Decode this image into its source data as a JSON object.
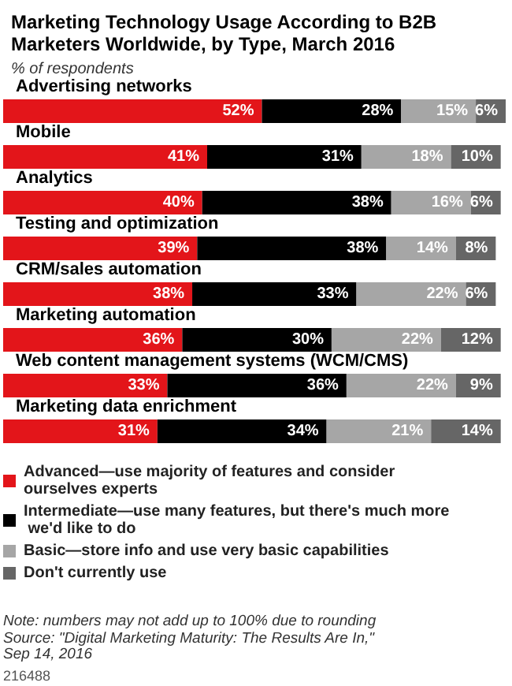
{
  "chart_data": {
    "type": "bar",
    "orientation": "horizontal",
    "stacked": true,
    "title": "Marketing Technology Usage According to B2B Marketers Worldwide, by Type, March 2016",
    "subtitle": "% of respondents",
    "categories": [
      "Advertising networks",
      "Mobile",
      "Analytics",
      "Testing and optimization",
      "CRM/sales automation",
      "Marketing automation",
      "Web content management systems (WCM/CMS)",
      "Marketing data enrichment"
    ],
    "series": [
      {
        "name": "Advanced—use majority of features and consider ourselves experts",
        "color": "#e3151a",
        "values": [
          52,
          41,
          40,
          39,
          38,
          36,
          33,
          31
        ],
        "value_labels": [
          "52%",
          "41%",
          "40%",
          "39%",
          "38%",
          "36%",
          "33%",
          "31%"
        ]
      },
      {
        "name": "Intermediate—use many features, but there's much more we'd like to do",
        "color": "#000000",
        "values": [
          28,
          31,
          38,
          38,
          33,
          30,
          36,
          34
        ],
        "value_labels": [
          "28%",
          "31%",
          "38%",
          "38%",
          "33%",
          "30%",
          "36%",
          "34%"
        ]
      },
      {
        "name": "Basic—store info and use very basic capabilities",
        "color": "#a6a6a6",
        "values": [
          15,
          18,
          16,
          14,
          22,
          22,
          22,
          21
        ],
        "value_labels": [
          "15%",
          "18%",
          "16%",
          "14%",
          "22%",
          "22%",
          "22%",
          "21%"
        ]
      },
      {
        "name": "Don't currently use",
        "color": "#666666",
        "values": [
          6,
          10,
          6,
          8,
          6,
          12,
          9,
          14
        ],
        "value_labels": [
          "6%",
          "10%",
          "6%",
          "8%",
          "6%",
          "12%",
          "9%",
          "14%"
        ]
      }
    ],
    "legend": "bottom",
    "tick_labels": "y",
    "annotations": [
      "Note: numbers may not add up to 100% due to rounding",
      "Source: \"Digital Marketing Maturity: The Results Are In,\" Sep 14, 2016",
      "216488"
    ]
  }
}
